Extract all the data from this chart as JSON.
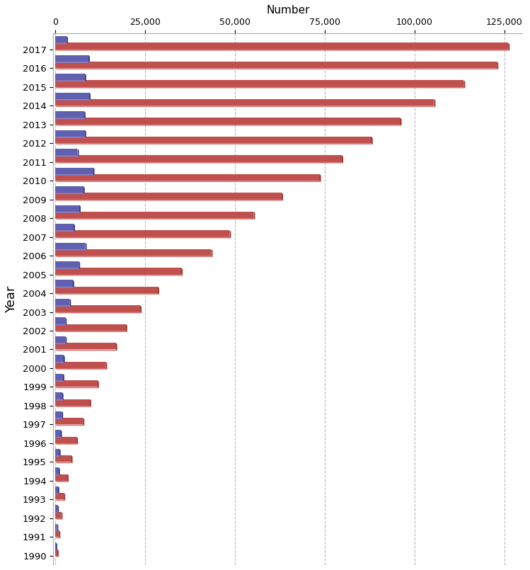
{
  "years": [
    2017,
    2016,
    2015,
    2014,
    2013,
    2012,
    2011,
    2010,
    2009,
    2008,
    2007,
    2006,
    2005,
    2004,
    2003,
    2002,
    2001,
    2000,
    1999,
    1998,
    1997,
    1996,
    1995,
    1994,
    1993,
    1992,
    1991,
    1990
  ],
  "total": [
    126025,
    122872,
    113635,
    105399,
    95965,
    87933,
    79718,
    73532,
    62993,
    55178,
    48503,
    43398,
    35042,
    28519,
    23622,
    19634,
    16843,
    14041,
    11751,
    9614,
    7714,
    5916,
    4432,
    3315,
    2382,
    1636,
    1025,
    548
  ],
  "yearly": [
    3153,
    9237,
    8236,
    9434,
    8032,
    8215,
    6186,
    10539,
    7815,
    6675,
    5105,
    8356,
    6523,
    4897,
    3988,
    2791,
    2802,
    2290,
    2137,
    1900,
    1798,
    1484,
    1117,
    933,
    746,
    611,
    477,
    159
  ],
  "title": "Number",
  "ylabel": "Year",
  "bar_color_red": "#c0504d",
  "bar_color_red_top": "#d4726f",
  "bar_color_red_side": "#9c3835",
  "bar_color_blue": "#6060b0",
  "bar_color_blue_top": "#8080cc",
  "bar_color_blue_side": "#404090",
  "background_color": "#ffffff",
  "grid_color": "#bbbbbb",
  "xticks": [
    0,
    25000,
    50000,
    75000,
    100000,
    125000
  ],
  "xtick_labels": [
    "0",
    "25,000",
    "50,000",
    "75,000",
    "100,000",
    "125,000"
  ]
}
